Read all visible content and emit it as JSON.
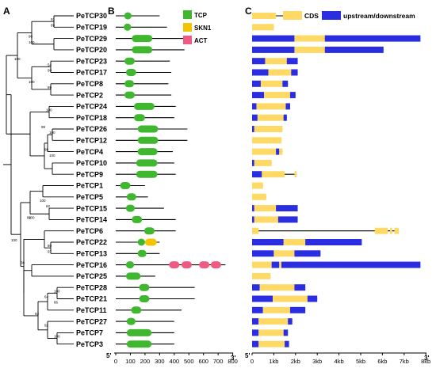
{
  "panels": {
    "a": "A",
    "b": "B",
    "c": "C"
  },
  "genes": [
    {
      "name": "PeTCP30",
      "len": 300,
      "domains": [
        {
          "t": "TCP",
          "s": 58,
          "e": 108
        }
      ],
      "gene": {
        "len": 1.65,
        "segs": [
          {
            "t": "CDS",
            "s": 0,
            "e": 1.1
          }
        ]
      }
    },
    {
      "name": "PeTCP19",
      "len": 350,
      "domains": [
        {
          "t": "TCP",
          "s": 55,
          "e": 105
        }
      ],
      "gene": {
        "len": 1.0,
        "segs": [
          {
            "t": "CDS",
            "s": 0,
            "e": 1.0
          }
        ]
      }
    },
    {
      "name": "PeTCP29",
      "len": 470,
      "domains": [
        {
          "t": "TCP",
          "s": 110,
          "e": 250
        }
      ],
      "gene": {
        "len": 7.75,
        "segs": [
          {
            "t": "UTR",
            "s": 0,
            "e": 1.95
          },
          {
            "t": "CDS",
            "s": 1.95,
            "e": 3.35
          },
          {
            "t": "UTR",
            "s": 3.35,
            "e": 7.75
          }
        ]
      }
    },
    {
      "name": "PeTCP20",
      "len": 470,
      "domains": [
        {
          "t": "TCP",
          "s": 110,
          "e": 250
        }
      ],
      "gene": {
        "len": 6.05,
        "segs": [
          {
            "t": "UTR",
            "s": 0,
            "e": 1.95
          },
          {
            "t": "CDS",
            "s": 1.95,
            "e": 3.35
          },
          {
            "t": "UTR",
            "s": 3.35,
            "e": 6.05
          }
        ]
      }
    },
    {
      "name": "PeTCP23",
      "len": 370,
      "domains": [
        {
          "t": "TCP",
          "s": 60,
          "e": 130
        }
      ],
      "gene": {
        "len": 2.1,
        "segs": [
          {
            "t": "UTR",
            "s": 0,
            "e": 0.6
          },
          {
            "t": "CDS",
            "s": 0.6,
            "e": 1.6
          },
          {
            "t": "UTR",
            "s": 1.6,
            "e": 2.1
          }
        ]
      }
    },
    {
      "name": "PeTCP17",
      "len": 380,
      "domains": [
        {
          "t": "TCP",
          "s": 70,
          "e": 140
        }
      ],
      "gene": {
        "len": 2.1,
        "segs": [
          {
            "t": "UTR",
            "s": 0,
            "e": 0.75
          },
          {
            "t": "CDS",
            "s": 0.75,
            "e": 1.8
          },
          {
            "t": "UTR",
            "s": 1.8,
            "e": 2.1
          }
        ]
      }
    },
    {
      "name": "PeTCP8",
      "len": 360,
      "domains": [
        {
          "t": "TCP",
          "s": 60,
          "e": 125
        }
      ],
      "gene": {
        "len": 1.65,
        "segs": [
          {
            "t": "UTR",
            "s": 0,
            "e": 0.4
          },
          {
            "t": "CDS",
            "s": 0.4,
            "e": 1.4
          },
          {
            "t": "UTR",
            "s": 1.4,
            "e": 1.65
          }
        ]
      }
    },
    {
      "name": "PeTCP2",
      "len": 380,
      "domains": [
        {
          "t": "TCP",
          "s": 60,
          "e": 130
        }
      ],
      "gene": {
        "len": 2.0,
        "segs": [
          {
            "t": "UTR",
            "s": 0,
            "e": 0.55
          },
          {
            "t": "CDS",
            "s": 0.55,
            "e": 1.75
          },
          {
            "t": "UTR",
            "s": 1.75,
            "e": 2.0
          }
        ]
      }
    },
    {
      "name": "PeTCP24",
      "len": 410,
      "domains": [
        {
          "t": "TCP",
          "s": 125,
          "e": 265
        }
      ],
      "gene": {
        "len": 1.75,
        "segs": [
          {
            "t": "UTR",
            "s": 0,
            "e": 0.2
          },
          {
            "t": "CDS",
            "s": 0.2,
            "e": 1.55
          },
          {
            "t": "UTR",
            "s": 1.55,
            "e": 1.75
          }
        ]
      }
    },
    {
      "name": "PeTCP18",
      "len": 400,
      "domains": [
        {
          "t": "TCP",
          "s": 125,
          "e": 200
        }
      ],
      "gene": {
        "len": 1.6,
        "segs": [
          {
            "t": "UTR",
            "s": 0,
            "e": 0.25
          },
          {
            "t": "CDS",
            "s": 0.25,
            "e": 1.45
          },
          {
            "t": "UTR",
            "s": 1.45,
            "e": 1.6
          }
        ]
      }
    },
    {
      "name": "PeTCP26",
      "len": 490,
      "domains": [
        {
          "t": "TCP",
          "s": 150,
          "e": 290
        }
      ],
      "gene": {
        "len": 1.4,
        "segs": [
          {
            "t": "UTR",
            "s": 0,
            "e": 0.1
          },
          {
            "t": "CDS",
            "s": 0.1,
            "e": 1.4
          }
        ]
      }
    },
    {
      "name": "PeTCP12",
      "len": 490,
      "domains": [
        {
          "t": "TCP",
          "s": 150,
          "e": 290
        }
      ],
      "gene": {
        "len": 1.35,
        "segs": [
          {
            "t": "CDS",
            "s": 0,
            "e": 1.35
          }
        ]
      }
    },
    {
      "name": "PeTCP4",
      "len": 390,
      "domains": [
        {
          "t": "TCP",
          "s": 150,
          "e": 285
        }
      ],
      "gene": {
        "len": 1.4,
        "segs": [
          {
            "t": "CDS",
            "s": 0,
            "e": 1.1
          },
          {
            "t": "UTR",
            "s": 1.1,
            "e": 1.25
          },
          {
            "t": "CDS",
            "s": 1.25,
            "e": 1.4
          }
        ]
      }
    },
    {
      "name": "PeTCP10",
      "len": 400,
      "domains": [
        {
          "t": "TCP",
          "s": 140,
          "e": 285
        }
      ],
      "gene": {
        "len": 0.9,
        "segs": [
          {
            "t": "UTR",
            "s": 0,
            "e": 0.1
          },
          {
            "t": "CDS",
            "s": 0.1,
            "e": 0.9
          }
        ]
      }
    },
    {
      "name": "PeTCP9",
      "len": 410,
      "domains": [
        {
          "t": "TCP",
          "s": 140,
          "e": 285
        }
      ],
      "gene": {
        "len": 2.05,
        "segs": [
          {
            "t": "UTR",
            "s": 0,
            "e": 0.45
          },
          {
            "t": "CDS",
            "s": 0.45,
            "e": 1.5
          },
          {
            "t": "CDS",
            "s": 1.95,
            "e": 2.05
          }
        ]
      }
    },
    {
      "name": "PeTCP1",
      "len": 200,
      "domains": [
        {
          "t": "TCP",
          "s": 30,
          "e": 100
        }
      ],
      "gene": {
        "len": 0.5,
        "segs": [
          {
            "t": "CDS",
            "s": 0,
            "e": 0.5
          }
        ]
      }
    },
    {
      "name": "PeTCP5",
      "len": 220,
      "domains": [
        {
          "t": "TCP",
          "s": 75,
          "e": 140
        }
      ],
      "gene": {
        "len": 0.65,
        "segs": [
          {
            "t": "CDS",
            "s": 0,
            "e": 0.65
          }
        ]
      }
    },
    {
      "name": "PeTCP15",
      "len": 330,
      "domains": [
        {
          "t": "TCP",
          "s": 70,
          "e": 130
        }
      ],
      "gene": {
        "len": 2.1,
        "segs": [
          {
            "t": "UTR",
            "s": 0,
            "e": 0.1
          },
          {
            "t": "CDS",
            "s": 0.1,
            "e": 1.1
          },
          {
            "t": "UTR",
            "s": 1.1,
            "e": 2.1
          }
        ]
      }
    },
    {
      "name": "PeTCP14",
      "len": 410,
      "domains": [
        {
          "t": "TCP",
          "s": 110,
          "e": 180
        }
      ],
      "gene": {
        "len": 2.1,
        "segs": [
          {
            "t": "UTR",
            "s": 0,
            "e": 0.1
          },
          {
            "t": "CDS",
            "s": 0.1,
            "e": 1.2
          },
          {
            "t": "UTR",
            "s": 1.2,
            "e": 2.1
          }
        ]
      }
    },
    {
      "name": "PeTCP6",
      "len": 410,
      "domains": [
        {
          "t": "TCP",
          "s": 195,
          "e": 265
        }
      ],
      "gene": {
        "len": 6.75,
        "segs": [
          {
            "t": "CDS",
            "s": 0,
            "e": 0.3
          },
          {
            "t": "CDS",
            "s": 5.65,
            "e": 6.25
          },
          {
            "t": "CDS",
            "s": 6.35,
            "e": 6.45
          },
          {
            "t": "CDS",
            "s": 6.55,
            "e": 6.75
          }
        ]
      }
    },
    {
      "name": "PeTCP22",
      "len": 300,
      "domains": [
        {
          "t": "TCP",
          "s": 150,
          "e": 200
        },
        {
          "t": "SKN1",
          "s": 200,
          "e": 280
        }
      ],
      "gene": {
        "len": 5.05,
        "segs": [
          {
            "t": "UTR",
            "s": 0,
            "e": 1.45
          },
          {
            "t": "CDS",
            "s": 1.45,
            "e": 2.45
          },
          {
            "t": "UTR",
            "s": 2.45,
            "e": 5.05
          }
        ]
      }
    },
    {
      "name": "PeTCP13",
      "len": 300,
      "domains": [
        {
          "t": "TCP",
          "s": 150,
          "e": 210
        }
      ],
      "gene": {
        "len": 3.15,
        "segs": [
          {
            "t": "UTR",
            "s": 0,
            "e": 1.0
          },
          {
            "t": "CDS",
            "s": 1.0,
            "e": 1.95
          },
          {
            "t": "UTR",
            "s": 1.95,
            "e": 3.15
          }
        ]
      }
    },
    {
      "name": "PeTCP16",
      "len": 750,
      "domains": [
        {
          "t": "TCP",
          "s": 70,
          "e": 125
        },
        {
          "t": "ACT",
          "s": 365,
          "e": 435
        },
        {
          "t": "ACT",
          "s": 450,
          "e": 520
        },
        {
          "t": "ACT",
          "s": 570,
          "e": 640
        },
        {
          "t": "ACT",
          "s": 650,
          "e": 720
        }
      ],
      "gene": {
        "len": 7.75,
        "segs": [
          {
            "t": "CDS",
            "s": 0,
            "e": 0.9
          },
          {
            "t": "UTR",
            "s": 0.9,
            "e": 1.25
          },
          {
            "t": "CDS",
            "s": 1.25,
            "e": 1.35
          },
          {
            "t": "UTR",
            "s": 1.35,
            "e": 7.75
          }
        ]
      }
    },
    {
      "name": "PeTCP25",
      "len": 270,
      "domains": [
        {
          "t": "TCP",
          "s": 70,
          "e": 170
        }
      ],
      "gene": {
        "len": 0.85,
        "segs": [
          {
            "t": "CDS",
            "s": 0,
            "e": 0.85
          }
        ]
      }
    },
    {
      "name": "PeTCP28",
      "len": 540,
      "domains": [
        {
          "t": "TCP",
          "s": 160,
          "e": 230
        }
      ],
      "gene": {
        "len": 2.45,
        "segs": [
          {
            "t": "UTR",
            "s": 0,
            "e": 0.35
          },
          {
            "t": "CDS",
            "s": 0.35,
            "e": 1.95
          },
          {
            "t": "UTR",
            "s": 1.95,
            "e": 2.45
          }
        ]
      }
    },
    {
      "name": "PeTCP21",
      "len": 540,
      "domains": [
        {
          "t": "TCP",
          "s": 160,
          "e": 230
        }
      ],
      "gene": {
        "len": 3.0,
        "segs": [
          {
            "t": "UTR",
            "s": 0,
            "e": 0.95
          },
          {
            "t": "CDS",
            "s": 0.95,
            "e": 2.55
          },
          {
            "t": "UTR",
            "s": 2.55,
            "e": 3.0
          }
        ]
      }
    },
    {
      "name": "PeTCP11",
      "len": 450,
      "domains": [
        {
          "t": "TCP",
          "s": 105,
          "e": 175
        }
      ],
      "gene": {
        "len": 2.45,
        "segs": [
          {
            "t": "UTR",
            "s": 0,
            "e": 0.5
          },
          {
            "t": "CDS",
            "s": 0.5,
            "e": 1.75
          },
          {
            "t": "UTR",
            "s": 1.75,
            "e": 2.45
          }
        ]
      }
    },
    {
      "name": "PeTCP27",
      "len": 400,
      "domains": [
        {
          "t": "TCP",
          "s": 75,
          "e": 135
        }
      ],
      "gene": {
        "len": 1.85,
        "segs": [
          {
            "t": "UTR",
            "s": 0,
            "e": 0.3
          },
          {
            "t": "CDS",
            "s": 0.3,
            "e": 1.65
          },
          {
            "t": "UTR",
            "s": 1.65,
            "e": 1.85
          }
        ]
      }
    },
    {
      "name": "PeTCP7",
      "len": 400,
      "domains": [
        {
          "t": "TCP",
          "s": 75,
          "e": 245
        }
      ],
      "gene": {
        "len": 1.65,
        "segs": [
          {
            "t": "UTR",
            "s": 0,
            "e": 0.3
          },
          {
            "t": "CDS",
            "s": 0.3,
            "e": 1.45
          },
          {
            "t": "UTR",
            "s": 1.45,
            "e": 1.65
          }
        ]
      }
    },
    {
      "name": "PeTCP3",
      "len": 400,
      "domains": [
        {
          "t": "TCP",
          "s": 75,
          "e": 245
        }
      ],
      "gene": {
        "len": 1.7,
        "segs": [
          {
            "t": "UTR",
            "s": 0,
            "e": 0.3
          },
          {
            "t": "CDS",
            "s": 0.3,
            "e": 1.5
          },
          {
            "t": "UTR",
            "s": 1.5,
            "e": 1.7
          }
        ]
      }
    }
  ],
  "tree_boot": [
    {
      "v": "91",
      "r": 0.5
    },
    {
      "v": "89",
      "r": 1
    },
    {
      "v": "100",
      "r": 2.5
    },
    {
      "v": "98",
      "r": 2
    },
    {
      "v": "54",
      "r": 4.5
    },
    {
      "v": "99",
      "r": 5
    },
    {
      "v": "99",
      "r": 6.5
    },
    {
      "v": "100",
      "r": 6
    },
    {
      "v": "100",
      "r": 4
    },
    {
      "v": "100",
      "r": 8.5
    },
    {
      "v": "100",
      "r": 10.5
    },
    {
      "v": "100",
      "r": 12.5
    },
    {
      "v": "88",
      "r": 12
    },
    {
      "v": "99",
      "r": 10
    },
    {
      "v": "100",
      "r": 16.5
    },
    {
      "v": "62",
      "r": 17
    },
    {
      "v": "100",
      "r": 18
    },
    {
      "v": "89",
      "r": 18
    },
    {
      "v": "80",
      "r": 20.5
    },
    {
      "v": "97",
      "r": 21
    },
    {
      "v": "38",
      "r": 22
    },
    {
      "v": "100",
      "r": 24.5
    },
    {
      "v": "86",
      "r": 25.5
    },
    {
      "v": "64",
      "r": 25
    },
    {
      "v": "92",
      "r": 27.5
    },
    {
      "v": "100",
      "r": 28.5
    },
    {
      "v": "93",
      "r": 26.5
    },
    {
      "v": "100",
      "r": 20
    }
  ],
  "legend_b": [
    {
      "label": "TCP",
      "color": "#3fb72f"
    },
    {
      "label": "SKN1",
      "color": "#f5c400"
    },
    {
      "label": "ACT",
      "color": "#ee5b82"
    }
  ],
  "legend_c": {
    "cds": "CDS",
    "utr": "upstream/downstream",
    "cds_color": "#ffd966",
    "utr_color": "#2b2ee0"
  },
  "axis_b": {
    "start": "5'",
    "end": "3'",
    "ticks": [
      "0",
      "100",
      "200",
      "300",
      "400",
      "500",
      "600",
      "700",
      "800"
    ]
  },
  "axis_c": {
    "start": "5'",
    "end": "3'",
    "ticks": [
      "0",
      "1kb",
      "2kb",
      "3kb",
      "4kb",
      "5kb",
      "6kb",
      "7kb",
      "8kb"
    ]
  }
}
